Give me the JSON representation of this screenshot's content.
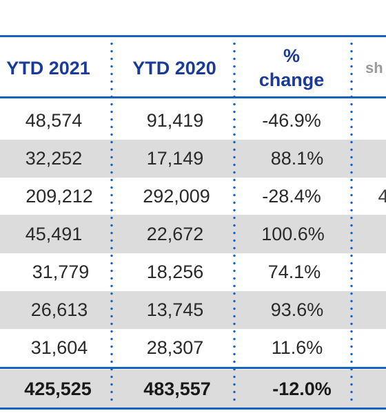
{
  "headers": {
    "col1": "YTD 2021",
    "col2": "YTD 2020",
    "col3_line1": "%",
    "col3_line2": "change",
    "col4_partial": "sh"
  },
  "rows": [
    {
      "ytd2021": "48,574",
      "ytd2020": "91,419",
      "change": "-46.9%"
    },
    {
      "ytd2021": "32,252",
      "ytd2020": "17,149",
      "change": "88.1%"
    },
    {
      "ytd2021": "209,212",
      "ytd2020": "292,009",
      "change": "-28.4%",
      "partial": "4"
    },
    {
      "ytd2021": "45,491",
      "ytd2020": "22,672",
      "change": "100.6%"
    },
    {
      "ytd2021": "31,779",
      "ytd2020": "18,256",
      "change": "74.1%"
    },
    {
      "ytd2021": "26,613",
      "ytd2020": "13,745",
      "change": "93.6%"
    },
    {
      "ytd2021": "31,604",
      "ytd2020": "28,307",
      "change": "11.6%"
    }
  ],
  "total": {
    "ytd2021": "425,525",
    "ytd2020": "483,557",
    "change": "-12.0%"
  },
  "colors": {
    "rule": "#1565c0",
    "header_text": "#1a3a9a",
    "band": "#dcdcdc"
  }
}
